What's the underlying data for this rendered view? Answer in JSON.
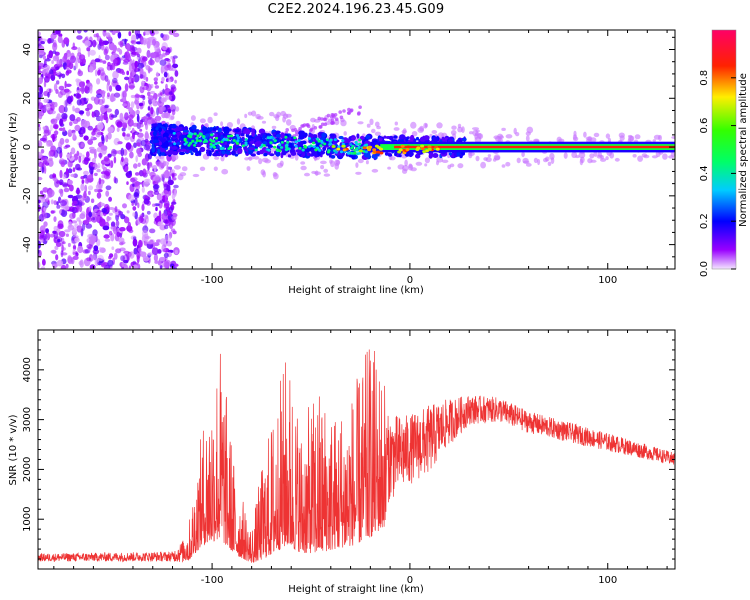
{
  "title": "C2E2.2024.196.23.45.G09",
  "chart_data": [
    {
      "type": "heatmap",
      "xlabel": "Height of straight line (km)",
      "ylabel": "Frequency (Hz)",
      "xlim": [
        -188,
        134
      ],
      "ylim": [
        -50,
        48
      ],
      "xticks": [
        -100,
        0,
        100
      ],
      "yticks": [
        -40,
        -20,
        0,
        20,
        40
      ],
      "colorbar": {
        "label": "Normalized spectral amplitude",
        "range": [
          0,
          1
        ],
        "ticks": [
          0.0,
          0.2,
          0.4,
          0.6,
          0.8
        ],
        "colormap": "gist_rainbow_reversed"
      },
      "features": {
        "noise_region_x": [
          -188,
          -118
        ],
        "band_center_hz": 0,
        "band_halfwidth_start_hz": 6,
        "band_halfwidth_end_hz": 2,
        "band_start_x": -130,
        "band_end_x": 134
      }
    },
    {
      "type": "line",
      "xlabel": "Height of straight line (km)",
      "ylabel": "SNR (10 * v/v)",
      "xlim": [
        -188,
        134
      ],
      "ylim": [
        0,
        4800
      ],
      "xticks": [
        -100,
        0,
        100
      ],
      "yticks": [
        1000,
        2000,
        3000,
        4000
      ],
      "color": "#ee3333",
      "envelope": [
        {
          "x": -188,
          "base": 230,
          "amp": 80
        },
        {
          "x": -120,
          "base": 250,
          "amp": 100
        },
        {
          "x": -112,
          "base": 400,
          "amp": 300
        },
        {
          "x": -105,
          "base": 1200,
          "amp": 1200
        },
        {
          "x": -96,
          "base": 1500,
          "amp": 2600
        },
        {
          "x": -88,
          "base": 700,
          "amp": 900
        },
        {
          "x": -80,
          "base": 300,
          "amp": 400
        },
        {
          "x": -74,
          "base": 500,
          "amp": 1600
        },
        {
          "x": -62,
          "base": 1200,
          "amp": 2800
        },
        {
          "x": -55,
          "base": 800,
          "amp": 1800
        },
        {
          "x": -46,
          "base": 800,
          "amp": 2600
        },
        {
          "x": -38,
          "base": 1000,
          "amp": 1800
        },
        {
          "x": -28,
          "base": 1200,
          "amp": 2000
        },
        {
          "x": -20,
          "base": 1600,
          "amp": 2400
        },
        {
          "x": -12,
          "base": 2200,
          "amp": 900
        },
        {
          "x": 0,
          "base": 2400,
          "amp": 700
        },
        {
          "x": 10,
          "base": 2600,
          "amp": 700
        },
        {
          "x": 18,
          "base": 2900,
          "amp": 500
        },
        {
          "x": 30,
          "base": 3200,
          "amp": 300
        },
        {
          "x": 45,
          "base": 3200,
          "amp": 250
        },
        {
          "x": 60,
          "base": 2950,
          "amp": 220
        },
        {
          "x": 80,
          "base": 2750,
          "amp": 200
        },
        {
          "x": 100,
          "base": 2550,
          "amp": 180
        },
        {
          "x": 120,
          "base": 2350,
          "amp": 150
        },
        {
          "x": 134,
          "base": 2200,
          "amp": 130
        }
      ]
    }
  ]
}
